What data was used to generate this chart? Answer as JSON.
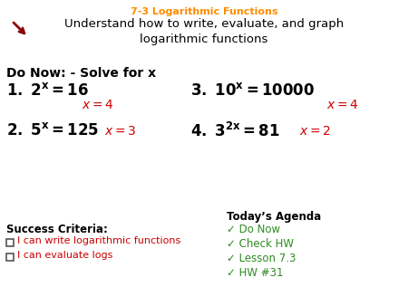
{
  "title_line1": "7-3 Logarithmic Functions",
  "title_line2": "Understand how to write, evaluate, and graph\nlogarithmic functions",
  "title_color": "#FF8C00",
  "title_line2_color": "#000000",
  "do_now_header": "Do Now: - Solve for x",
  "success_criteria_header": "Success Criteria:",
  "success_criteria": [
    "I can write logarithmic functions",
    "I can evaluate logs"
  ],
  "agenda_header": "Today’s Agenda",
  "agenda_items": [
    "Do Now",
    "Check HW",
    "Lesson 7.3",
    "HW #31"
  ],
  "agenda_color": "#2E8B22",
  "answer_color": "#CC0000",
  "sc_item_color": "#CC0000",
  "black": "#000000",
  "background": "#FFFFFF",
  "icon_rings": [
    "white",
    "black",
    "white",
    "#CC0000"
  ],
  "icon_radii": [
    28,
    20,
    13,
    6
  ]
}
